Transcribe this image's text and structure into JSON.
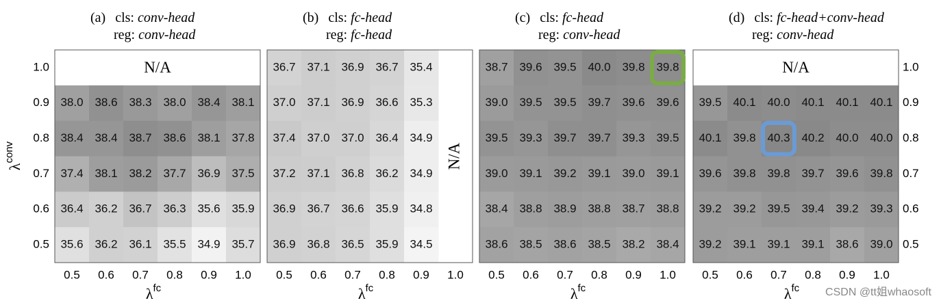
{
  "chart_data": [
    {
      "type": "heatmap",
      "title_label": "(a)",
      "cls_prefix": "cls:",
      "cls_head": "conv-head",
      "reg_prefix": "reg:",
      "reg_head": "conv-head",
      "x": [
        "0.5",
        "0.6",
        "0.7",
        "0.8",
        "0.9",
        "1.0"
      ],
      "y": [
        "1.0",
        "0.9",
        "0.8",
        "0.7",
        "0.6",
        "0.5"
      ],
      "xlabel": "λ",
      "xlabel_sup": "fc",
      "ylabel": "λ",
      "ylabel_sup": "conv",
      "ytick_side": "left",
      "annotation": "N/A",
      "na_region": "top-row",
      "colormap": {
        "light": "#f2f2f2",
        "dark": "#8e8e8e"
      },
      "values": [
        [
          null,
          null,
          null,
          null,
          null,
          null
        ],
        [
          38.0,
          38.6,
          38.3,
          38.0,
          38.4,
          38.1
        ],
        [
          38.4,
          38.4,
          38.7,
          38.6,
          38.1,
          37.8
        ],
        [
          37.4,
          38.1,
          38.2,
          37.7,
          36.9,
          37.5
        ],
        [
          36.4,
          36.2,
          36.7,
          36.3,
          35.6,
          35.9
        ],
        [
          35.6,
          36.2,
          36.1,
          35.5,
          34.9,
          35.7
        ]
      ],
      "value_labels": [
        [
          null,
          null,
          null,
          null,
          null,
          null
        ],
        [
          "38.0",
          "38.6",
          "38.3",
          "38.0",
          "38.4",
          "38.1"
        ],
        [
          "38.4",
          "38.4",
          "38.7",
          "38.6",
          "38.1",
          "37.8"
        ],
        [
          "37.4",
          "38.1",
          "38.2",
          "37.7",
          "36.9",
          "37.5"
        ],
        [
          "36.4",
          "36.2",
          "36.7",
          "36.3",
          "35.6",
          "35.9"
        ],
        [
          "35.6",
          "36.2",
          "36.1",
          "35.5",
          "34.9",
          "35.7"
        ]
      ]
    },
    {
      "type": "heatmap",
      "title_label": "(b)",
      "cls_prefix": "cls:",
      "cls_head": "fc-head",
      "reg_prefix": "reg:",
      "reg_head": "fc-head",
      "x": [
        "0.5",
        "0.6",
        "0.7",
        "0.8",
        "0.9",
        "1.0"
      ],
      "y": [
        "1.0",
        "0.9",
        "0.8",
        "0.7",
        "0.6",
        "0.5"
      ],
      "xlabel": "λ",
      "xlabel_sup": "fc",
      "ytick_side": "none",
      "annotation": "N/A",
      "na_region": "last-column",
      "colormap": {
        "light": "#f4f4f4",
        "dark": "#c9c9c9"
      },
      "values": [
        [
          36.7,
          37.1,
          36.9,
          36.7,
          35.4,
          null
        ],
        [
          37.0,
          37.1,
          36.9,
          36.6,
          35.3,
          null
        ],
        [
          37.4,
          37.0,
          37.0,
          36.4,
          34.9,
          null
        ],
        [
          37.2,
          37.1,
          36.8,
          36.2,
          34.9,
          null
        ],
        [
          36.9,
          36.7,
          36.6,
          35.9,
          34.8,
          null
        ],
        [
          36.9,
          36.8,
          36.5,
          35.9,
          34.5,
          null
        ]
      ],
      "value_labels": [
        [
          "36.7",
          "37.1",
          "36.9",
          "36.7",
          "35.4",
          null
        ],
        [
          "37.0",
          "37.1",
          "36.9",
          "36.6",
          "35.3",
          null
        ],
        [
          "37.4",
          "37.0",
          "37.0",
          "36.4",
          "34.9",
          null
        ],
        [
          "37.2",
          "37.1",
          "36.8",
          "36.2",
          "34.9",
          null
        ],
        [
          "36.9",
          "36.7",
          "36.6",
          "35.9",
          "34.8",
          null
        ],
        [
          "36.9",
          "36.8",
          "36.5",
          "35.9",
          "34.5",
          null
        ]
      ]
    },
    {
      "type": "heatmap",
      "title_label": "(c)",
      "cls_prefix": "cls:",
      "cls_head": "fc-head",
      "reg_prefix": "reg:",
      "reg_head": "conv-head",
      "x": [
        "0.5",
        "0.6",
        "0.7",
        "0.8",
        "0.9",
        "1.0"
      ],
      "y": [
        "1.0",
        "0.9",
        "0.8",
        "0.7",
        "0.6",
        "0.5"
      ],
      "xlabel": "λ",
      "xlabel_sup": "fc",
      "ytick_side": "none",
      "colormap": {
        "light": "#a9a9a9",
        "dark": "#8a8a8a"
      },
      "highlight": {
        "x": "1.0",
        "y": "1.0",
        "color": "#7aab48"
      },
      "values": [
        [
          38.7,
          39.6,
          39.5,
          40.0,
          39.8,
          39.8
        ],
        [
          39.0,
          39.5,
          39.5,
          39.7,
          39.6,
          39.6
        ],
        [
          39.5,
          39.3,
          39.7,
          39.7,
          39.3,
          39.5
        ],
        [
          39.0,
          39.1,
          39.2,
          39.1,
          39.0,
          39.1
        ],
        [
          38.4,
          38.8,
          38.9,
          38.8,
          38.7,
          38.8
        ],
        [
          38.6,
          38.5,
          38.6,
          38.5,
          38.2,
          38.4
        ]
      ],
      "value_labels": [
        [
          "38.7",
          "39.6",
          "39.5",
          "40.0",
          "39.8",
          "39.8"
        ],
        [
          "39.0",
          "39.5",
          "39.5",
          "39.7",
          "39.6",
          "39.6"
        ],
        [
          "39.5",
          "39.3",
          "39.7",
          "39.7",
          "39.3",
          "39.5"
        ],
        [
          "39.0",
          "39.1",
          "39.2",
          "39.1",
          "39.0",
          "39.1"
        ],
        [
          "38.4",
          "38.8",
          "38.9",
          "38.8",
          "38.7",
          "38.8"
        ],
        [
          "38.6",
          "38.5",
          "38.6",
          "38.5",
          "38.2",
          "38.4"
        ]
      ]
    },
    {
      "type": "heatmap",
      "title_label": "(d)",
      "cls_prefix": "cls:",
      "cls_head": "fc-head+conv-head",
      "reg_prefix": "reg:",
      "reg_head": "conv-head",
      "x": [
        "0.5",
        "0.6",
        "0.7",
        "0.8",
        "0.9",
        "1.0"
      ],
      "y": [
        "1.0",
        "0.9",
        "0.8",
        "0.7",
        "0.6",
        "0.5"
      ],
      "xlabel": "λ",
      "xlabel_sup": "fc",
      "ytick_side": "right",
      "annotation": "N/A",
      "na_region": "top-row",
      "colormap": {
        "light": "#a8a8a8",
        "dark": "#878787"
      },
      "highlight": {
        "x": "0.7",
        "y": "0.8",
        "color": "#6b9bd6"
      },
      "values": [
        [
          null,
          null,
          null,
          null,
          null,
          null
        ],
        [
          39.5,
          40.1,
          40.0,
          40.1,
          40.1,
          40.1
        ],
        [
          40.1,
          39.8,
          40.3,
          40.2,
          40.0,
          40.0
        ],
        [
          39.6,
          39.8,
          39.8,
          39.7,
          39.6,
          39.8
        ],
        [
          39.2,
          39.2,
          39.5,
          39.4,
          39.2,
          39.3
        ],
        [
          39.2,
          39.1,
          39.1,
          39.1,
          38.6,
          39.0
        ]
      ],
      "value_labels": [
        [
          null,
          null,
          null,
          null,
          null,
          null
        ],
        [
          "39.5",
          "40.1",
          "40.0",
          "40.1",
          "40.1",
          "40.1"
        ],
        [
          "40.1",
          "39.8",
          "40.3",
          "40.2",
          "40.0",
          "40.0"
        ],
        [
          "39.6",
          "39.8",
          "39.8",
          "39.7",
          "39.6",
          "39.8"
        ],
        [
          "39.2",
          "39.2",
          "39.5",
          "39.4",
          "39.2",
          "39.3"
        ],
        [
          "39.2",
          "39.1",
          "39.1",
          "39.1",
          "38.6",
          "39.0"
        ]
      ]
    }
  ],
  "watermark": "CSDN @tt姐whaosoft"
}
